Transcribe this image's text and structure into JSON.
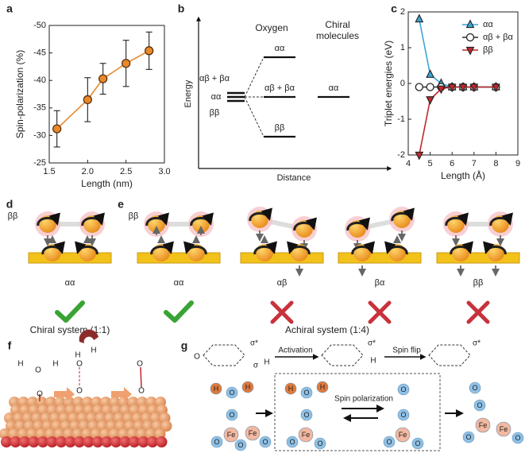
{
  "panel_labels": [
    "a",
    "b",
    "c",
    "d",
    "e",
    "f",
    "g"
  ],
  "chart_data": [
    {
      "type": "line",
      "x_label": "Length (nm)",
      "y_label": "Spin-polarization (%)",
      "x": [
        1.6,
        2.0,
        2.2,
        2.5,
        2.8
      ],
      "values": [
        -31.2,
        -36.5,
        -40.3,
        -43.1,
        -45.4
      ],
      "errors": [
        3.3,
        4.0,
        2.8,
        4.2,
        3.4
      ],
      "color": "#e8892b",
      "marker": "o",
      "xlim": [
        1.5,
        3.0
      ],
      "xticks": [
        {
          "value": 1.5,
          "label": "1.5"
        },
        {
          "value": 2.0,
          "label": "2.0"
        },
        {
          "value": 2.5,
          "label": "2.5"
        },
        {
          "value": 3.0,
          "label": "3.0"
        }
      ],
      "ylim": [
        -25,
        -50
      ],
      "yticks": [
        -50,
        -45,
        -40,
        -35,
        -30,
        -25
      ]
    },
    {
      "type": "line",
      "x_label": "Length (Å)",
      "y_label": "Triplet energies (eV)",
      "x": [
        4.5,
        5,
        5.5,
        6,
        6.5,
        7,
        8
      ],
      "series": [
        {
          "name": "αα",
          "color": "#3aa6d6",
          "marker": "^",
          "values": [
            1.8,
            0.25,
            0,
            -0.1,
            -0.1,
            -0.1,
            -0.1
          ]
        },
        {
          "name": "αβ + βα",
          "color": "#2b2b3a",
          "marker": "o",
          "marker_fill": "#ffffff",
          "values": [
            -0.1,
            -0.1,
            -0.1,
            -0.1,
            -0.1,
            -0.1,
            -0.1
          ]
        },
        {
          "name": "ββ",
          "color": "#c0282d",
          "marker": "v",
          "values": [
            -2.0,
            -0.45,
            -0.15,
            -0.1,
            -0.1,
            -0.1,
            -0.1
          ]
        }
      ],
      "xlim": [
        4,
        9
      ],
      "xticks": [
        4,
        5,
        6,
        7,
        8,
        9
      ],
      "ylim": [
        -2,
        2
      ],
      "yticks": [
        -2,
        -1,
        0,
        1,
        2
      ],
      "legend": "upper right"
    }
  ],
  "energy_diagram": {
    "y_label": "Energy",
    "x_label": "Distance",
    "oxygen_title": "Oxygen",
    "chiral_title": [
      "Chiral",
      "molecules"
    ],
    "left_labels": [
      "αβ + βα",
      "αα",
      "ββ"
    ],
    "oxygen_levels": [
      "αα",
      "αβ + βα",
      "ββ"
    ],
    "chiral_level": "αα"
  },
  "spin_panels": {
    "d_row_label": "ββ",
    "d_label": "αα",
    "e_row_label": "ββ",
    "e_labels": [
      "αα",
      "αβ",
      "βα",
      "ββ"
    ],
    "chiral_caption": "Chiral system (1:1)",
    "achiral_caption": "Achiral system (1:4)"
  },
  "panel_f": {
    "atoms": [
      "H",
      "O",
      "H",
      "O",
      "H",
      "H",
      "O",
      "O",
      "O",
      "O"
    ]
  },
  "panel_g": {
    "orbital_texts": [
      "O",
      "σ*",
      "σ",
      "H",
      "Activation",
      "σ*",
      "H",
      "Spin flip",
      "σ*",
      "Spin polarization"
    ],
    "atoms": [
      "H",
      "O",
      "H",
      "O",
      "Fe",
      "O",
      "Fe",
      "O",
      "O",
      "H",
      "O",
      "H",
      "O",
      "Fe",
      "O",
      "O",
      "O",
      "O",
      "Fe",
      "O",
      "O",
      "O",
      "O",
      "Fe",
      "O",
      "Fe",
      "O"
    ]
  }
}
